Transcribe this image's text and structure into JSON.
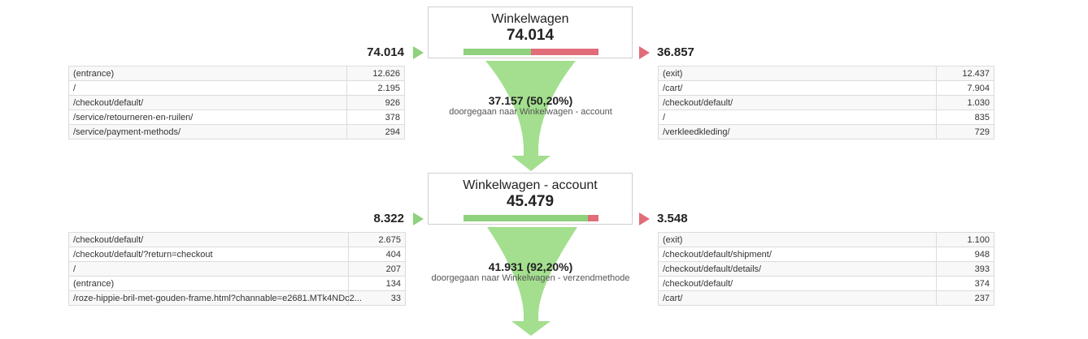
{
  "steps": [
    {
      "title": "Winkelwagen",
      "count": "74.014",
      "in_total": "74.014",
      "out_total": "36.857",
      "progress": 0.502,
      "entrances": [
        {
          "label": "(entrance)",
          "value": "12.626"
        },
        {
          "label": "/",
          "value": "2.195"
        },
        {
          "label": "/checkout/default/",
          "value": "926"
        },
        {
          "label": "/service/retourneren-en-ruilen/",
          "value": "378"
        },
        {
          "label": "/service/payment-methods/",
          "value": "294"
        }
      ],
      "exits": [
        {
          "label": "(exit)",
          "value": "12.437"
        },
        {
          "label": "/cart/",
          "value": "7.904"
        },
        {
          "label": "/checkout/default/",
          "value": "1.030"
        },
        {
          "label": "/",
          "value": "835"
        },
        {
          "label": "/verkleedkleding/",
          "value": "729"
        }
      ],
      "conversion": {
        "value": "37.157 (50,20%)",
        "label": "doorgegaan naar Winkelwagen - account"
      }
    },
    {
      "title": "Winkelwagen - account",
      "count": "45.479",
      "in_total": "8.322",
      "out_total": "3.548",
      "progress": 0.922,
      "entrances": [
        {
          "label": "/checkout/default/",
          "value": "2.675"
        },
        {
          "label": "/checkout/default/?return=checkout",
          "value": "404"
        },
        {
          "label": "/",
          "value": "207"
        },
        {
          "label": "(entrance)",
          "value": "134"
        },
        {
          "label": "/roze-hippie-bril-met-gouden-frame.html?channable=e2681.MTk4NDc2...",
          "value": "33"
        }
      ],
      "exits": [
        {
          "label": "(exit)",
          "value": "1.100"
        },
        {
          "label": "/checkout/default/shipment/",
          "value": "948"
        },
        {
          "label": "/checkout/default/details/",
          "value": "393"
        },
        {
          "label": "/checkout/default/",
          "value": "374"
        },
        {
          "label": "/cart/",
          "value": "237"
        }
      ],
      "conversion": {
        "value": "41.931 (92,20%)",
        "label": "doorgegaan naar Winkelwagen - verzendmethode"
      }
    }
  ],
  "colors": {
    "in_arrow": "#8fd17c",
    "out_arrow": "#e06d79",
    "funnel": "#a3df8e"
  }
}
